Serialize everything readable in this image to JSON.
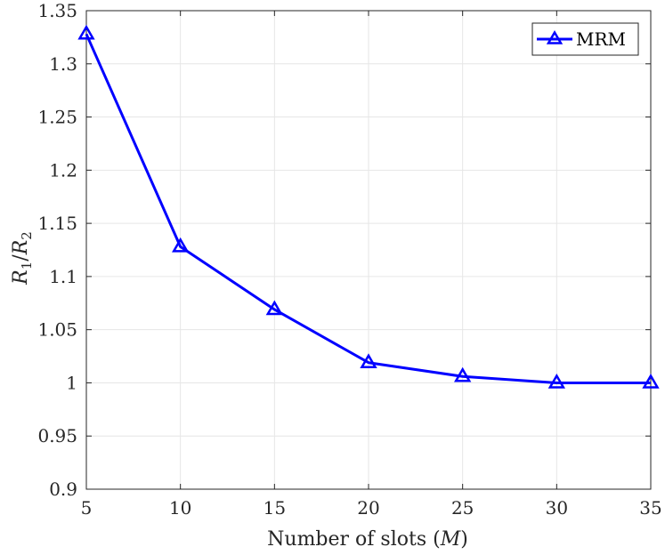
{
  "chart_data": {
    "type": "line",
    "x": [
      5,
      10,
      15,
      20,
      25,
      30,
      35
    ],
    "series": [
      {
        "name": "MRM",
        "values": [
          1.328,
          1.128,
          1.069,
          1.019,
          1.006,
          1.0,
          1.0
        ],
        "color": "#0000ff",
        "marker": "triangle"
      }
    ],
    "xlabel_text": "Number of slots (",
    "xlabel_var": "M",
    "xlabel_close": ")",
    "ylabel_main": "R",
    "ylabel_sub1": "1",
    "ylabel_slash": "/",
    "ylabel_sub2": "2",
    "xlim": [
      5,
      35
    ],
    "ylim": [
      0.9,
      1.35
    ],
    "xticks": [
      5,
      10,
      15,
      20,
      25,
      30,
      35
    ],
    "yticks": [
      0.9,
      0.95,
      1.0,
      1.05,
      1.1,
      1.15,
      1.2,
      1.25,
      1.3,
      1.35
    ],
    "ytick_labels": [
      "0.9",
      "0.95",
      "1",
      "1.05",
      "1.1",
      "1.15",
      "1.2",
      "1.25",
      "1.3",
      "1.35"
    ],
    "grid": true,
    "legend_position": "top-right"
  }
}
